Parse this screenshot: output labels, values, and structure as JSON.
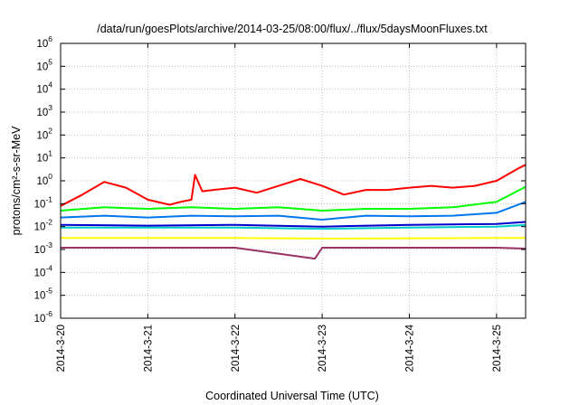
{
  "chart_data": {
    "type": "line",
    "title": "/data/run/goesPlots/archive/2014-03-25/08:00/flux/../flux/5daysMoonFluxes.txt",
    "xlabel": "Coordinated Universal Time (UTC)",
    "ylabel": "protons/cm²-s-sr-MeV",
    "ylog": true,
    "ylim": [
      1e-06,
      1000000.0
    ],
    "xlim": [
      "2014-03-20T00:00",
      "2014-03-25T08:00"
    ],
    "grid": true,
    "legend": "none",
    "x_ticks": [
      {
        "x": "2014-03-20T00:00",
        "label": "2014-3-20"
      },
      {
        "x": "2014-03-21T00:00",
        "label": "2014-3-21"
      },
      {
        "x": "2014-03-22T00:00",
        "label": "2014-3-22"
      },
      {
        "x": "2014-03-23T00:00",
        "label": "2014-3-23"
      },
      {
        "x": "2014-03-24T00:00",
        "label": "2014-3-24"
      },
      {
        "x": "2014-03-25T00:00",
        "label": "2014-3-25"
      }
    ],
    "y_ticks": [
      {
        "value": 1e-06,
        "base": "10",
        "exp": "-6"
      },
      {
        "value": 1e-05,
        "base": "10",
        "exp": "-5"
      },
      {
        "value": 0.0001,
        "base": "10",
        "exp": "-4"
      },
      {
        "value": 0.001,
        "base": "10",
        "exp": "-3"
      },
      {
        "value": 0.01,
        "base": "10",
        "exp": "-2"
      },
      {
        "value": 0.1,
        "base": "10",
        "exp": "-1"
      },
      {
        "value": 1.0,
        "base": "10",
        "exp": "0"
      },
      {
        "value": 10.0,
        "base": "10",
        "exp": "1"
      },
      {
        "value": 100.0,
        "base": "10",
        "exp": "2"
      },
      {
        "value": 1000.0,
        "base": "10",
        "exp": "3"
      },
      {
        "value": 10000.0,
        "base": "10",
        "exp": "4"
      },
      {
        "value": 100000.0,
        "base": "10",
        "exp": "5"
      },
      {
        "value": 1000000.0,
        "base": "10",
        "exp": "6"
      }
    ],
    "series": [
      {
        "color": "#ff0000",
        "x": [
          "2014-03-20T00:00",
          "2014-03-20T06:00",
          "2014-03-20T12:00",
          "2014-03-20T18:00",
          "2014-03-21T00:00",
          "2014-03-21T06:00",
          "2014-03-21T09:00",
          "2014-03-21T12:00",
          "2014-03-21T13:00",
          "2014-03-21T15:00",
          "2014-03-21T18:00",
          "2014-03-22T00:00",
          "2014-03-22T06:00",
          "2014-03-22T12:00",
          "2014-03-22T18:00",
          "2014-03-23T00:00",
          "2014-03-23T06:00",
          "2014-03-23T12:00",
          "2014-03-23T18:00",
          "2014-03-24T00:00",
          "2014-03-24T06:00",
          "2014-03-24T12:00",
          "2014-03-24T18:00",
          "2014-03-25T00:00",
          "2014-03-25T06:00",
          "2014-03-25T08:00"
        ],
        "y": [
          0.08,
          0.25,
          0.9,
          0.5,
          0.15,
          0.09,
          0.12,
          0.15,
          1.8,
          0.35,
          0.4,
          0.5,
          0.3,
          0.6,
          1.2,
          0.6,
          0.25,
          0.4,
          0.4,
          0.5,
          0.6,
          0.5,
          0.6,
          1.0,
          3.5,
          5.0
        ]
      },
      {
        "color": "#00ff00",
        "x": [
          "2014-03-20T00:00",
          "2014-03-20T12:00",
          "2014-03-21T00:00",
          "2014-03-21T12:00",
          "2014-03-22T00:00",
          "2014-03-22T12:00",
          "2014-03-23T00:00",
          "2014-03-23T12:00",
          "2014-03-24T00:00",
          "2014-03-24T12:00",
          "2014-03-25T00:00",
          "2014-03-25T08:00"
        ],
        "y": [
          0.05,
          0.07,
          0.06,
          0.07,
          0.06,
          0.07,
          0.05,
          0.06,
          0.06,
          0.07,
          0.12,
          0.55
        ]
      },
      {
        "color": "#0077ee",
        "x": [
          "2014-03-20T00:00",
          "2014-03-20T12:00",
          "2014-03-21T00:00",
          "2014-03-21T12:00",
          "2014-03-22T00:00",
          "2014-03-22T12:00",
          "2014-03-23T00:00",
          "2014-03-23T12:00",
          "2014-03-24T00:00",
          "2014-03-24T12:00",
          "2014-03-25T00:00",
          "2014-03-25T08:00"
        ],
        "y": [
          0.025,
          0.03,
          0.025,
          0.03,
          0.028,
          0.03,
          0.02,
          0.03,
          0.028,
          0.03,
          0.04,
          0.12
        ]
      },
      {
        "color": "#00cccc",
        "x": [
          "2014-03-20T00:00",
          "2014-03-21T00:00",
          "2014-03-22T00:00",
          "2014-03-23T00:00",
          "2014-03-24T00:00",
          "2014-03-25T00:00",
          "2014-03-25T08:00"
        ],
        "y": [
          0.009,
          0.009,
          0.009,
          0.008,
          0.009,
          0.01,
          0.012
        ]
      },
      {
        "color": "#0000cc",
        "x": [
          "2014-03-20T00:00",
          "2014-03-21T00:00",
          "2014-03-22T00:00",
          "2014-03-23T00:00",
          "2014-03-24T00:00",
          "2014-03-25T00:00",
          "2014-03-25T08:00"
        ],
        "y": [
          0.012,
          0.011,
          0.012,
          0.01,
          0.012,
          0.013,
          0.016
        ]
      },
      {
        "color": "#ffff00",
        "x": [
          "2014-03-20T00:00",
          "2014-03-21T00:00",
          "2014-03-22T00:00",
          "2014-03-23T00:00",
          "2014-03-24T00:00",
          "2014-03-25T00:00",
          "2014-03-25T08:00"
        ],
        "y": [
          0.0032,
          0.0032,
          0.0032,
          0.003,
          0.0031,
          0.0032,
          0.0032
        ]
      },
      {
        "color": "#993366",
        "x": [
          "2014-03-20T00:00",
          "2014-03-21T00:00",
          "2014-03-22T00:00",
          "2014-03-22T22:00",
          "2014-03-23T00:00",
          "2014-03-24T00:00",
          "2014-03-25T00:00",
          "2014-03-25T08:00"
        ],
        "y": [
          0.0012,
          0.0012,
          0.0012,
          0.0004,
          0.0012,
          0.0012,
          0.0012,
          0.0011
        ]
      }
    ]
  }
}
